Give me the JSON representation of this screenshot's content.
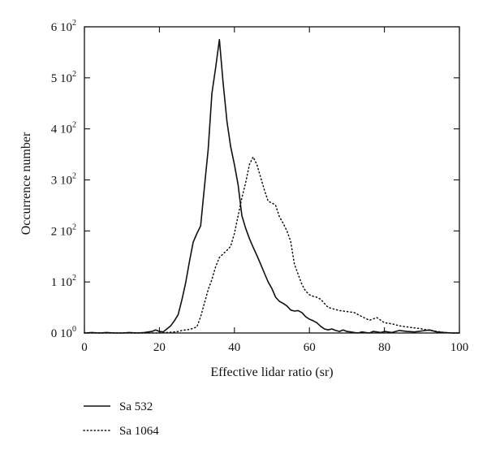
{
  "chart_data": {
    "type": "line",
    "xlabel": "Effective lidar ratio (sr)",
    "ylabel": "Occurrence number",
    "xlim": [
      0,
      100
    ],
    "ylim": [
      0,
      600
    ],
    "x_ticks": [
      {
        "value": 0,
        "label": "0"
      },
      {
        "value": 20,
        "label": "20"
      },
      {
        "value": 40,
        "label": "40"
      },
      {
        "value": 60,
        "label": "60"
      },
      {
        "value": 80,
        "label": "80"
      },
      {
        "value": 100,
        "label": "100"
      }
    ],
    "y_ticks": [
      {
        "value": 0,
        "mantissa": "0 10",
        "exp": "0"
      },
      {
        "value": 100,
        "mantissa": "1 10",
        "exp": "2"
      },
      {
        "value": 200,
        "mantissa": "2 10",
        "exp": "2"
      },
      {
        "value": 300,
        "mantissa": "3 10",
        "exp": "2"
      },
      {
        "value": 400,
        "mantissa": "4 10",
        "exp": "2"
      },
      {
        "value": 500,
        "mantissa": "5 10",
        "exp": "2"
      },
      {
        "value": 600,
        "mantissa": "6 10",
        "exp": "2"
      }
    ],
    "grid": false,
    "legend_position": "bottom-left, below plot",
    "series": [
      {
        "name": "Sa 532",
        "style": "solid",
        "x": [
          0,
          2,
          4,
          6,
          8,
          10,
          12,
          14,
          16,
          18,
          19,
          20,
          21,
          22,
          23,
          24,
          25,
          26,
          27,
          28,
          29,
          30,
          31,
          32,
          33,
          34,
          35,
          36,
          37,
          38,
          39,
          40,
          41,
          42,
          43,
          44,
          45,
          46,
          47,
          48,
          49,
          50,
          51,
          52,
          53,
          54,
          55,
          56,
          57,
          58,
          59,
          60,
          61,
          62,
          63,
          64,
          65,
          66,
          67,
          68,
          69,
          70,
          71,
          72,
          73,
          74,
          75,
          76,
          77,
          78,
          79,
          80,
          82,
          84,
          86,
          88,
          90,
          92,
          94,
          96,
          98,
          100
        ],
        "values": [
          0,
          1,
          0,
          1,
          0,
          0,
          1,
          0,
          1,
          3,
          6,
          3,
          2,
          8,
          14,
          24,
          36,
          65,
          98,
          140,
          178,
          195,
          210,
          285,
          360,
          470,
          520,
          575,
          490,
          415,
          365,
          330,
          290,
          230,
          205,
          185,
          168,
          152,
          135,
          117,
          100,
          87,
          70,
          62,
          58,
          53,
          45,
          43,
          44,
          40,
          32,
          27,
          24,
          20,
          13,
          8,
          6,
          8,
          5,
          3,
          6,
          3,
          2,
          1,
          0,
          2,
          1,
          0,
          3,
          2,
          1,
          3,
          1,
          5,
          3,
          2,
          4,
          6,
          2,
          1,
          0,
          0
        ]
      },
      {
        "name": "Sa 1064",
        "style": "dotted",
        "x": [
          0,
          5,
          10,
          15,
          20,
          22,
          24,
          25,
          26,
          27,
          28,
          29,
          30,
          31,
          32,
          33,
          34,
          35,
          36,
          37,
          38,
          39,
          40,
          41,
          42,
          43,
          44,
          45,
          46,
          47,
          48,
          49,
          50,
          51,
          52,
          53,
          54,
          55,
          56,
          57,
          58,
          59,
          60,
          61,
          62,
          63,
          64,
          65,
          66,
          67,
          68,
          69,
          70,
          72,
          74,
          76,
          78,
          80,
          82,
          84,
          86,
          88,
          90,
          92,
          94,
          96,
          98,
          100
        ],
        "values": [
          0,
          0,
          0,
          0,
          0,
          1,
          2,
          3,
          5,
          6,
          7,
          9,
          12,
          32,
          58,
          85,
          105,
          130,
          148,
          155,
          162,
          170,
          195,
          230,
          265,
          295,
          330,
          345,
          330,
          305,
          280,
          258,
          255,
          250,
          228,
          215,
          200,
          180,
          135,
          115,
          95,
          82,
          75,
          72,
          70,
          66,
          58,
          50,
          48,
          46,
          44,
          43,
          42,
          40,
          32,
          25,
          30,
          20,
          18,
          14,
          12,
          10,
          8,
          5,
          3,
          1,
          0,
          0
        ]
      }
    ]
  }
}
